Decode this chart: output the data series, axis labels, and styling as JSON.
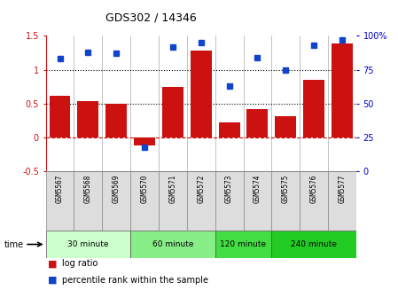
{
  "title": "GDS302 / 14346",
  "samples": [
    "GSM5567",
    "GSM5568",
    "GSM5569",
    "GSM5570",
    "GSM5571",
    "GSM5572",
    "GSM5573",
    "GSM5574",
    "GSM5575",
    "GSM5576",
    "GSM5577"
  ],
  "log_ratio": [
    0.62,
    0.54,
    0.5,
    -0.12,
    0.75,
    1.28,
    0.22,
    0.42,
    0.32,
    0.85,
    1.38
  ],
  "percentile": [
    83,
    88,
    87,
    18,
    92,
    95,
    63,
    84,
    75,
    93,
    97
  ],
  "bar_color": "#cc1111",
  "dot_color": "#1144cc",
  "ylim_left": [
    -0.5,
    1.5
  ],
  "ylim_right": [
    0,
    100
  ],
  "yticks_left": [
    -0.5,
    0.0,
    0.5,
    1.0,
    1.5
  ],
  "ytick_labels_left": [
    "-0.5",
    "0",
    "0.5",
    "1",
    "1.5"
  ],
  "yticks_right": [
    0,
    25,
    50,
    75,
    100
  ],
  "ytick_labels_right": [
    "0",
    "25",
    "50",
    "75",
    "100%"
  ],
  "hlines": [
    0.5,
    1.0
  ],
  "zero_line": 0.0,
  "groups": [
    {
      "label": "30 minute",
      "start": 0,
      "end": 3,
      "color": "#ccffcc"
    },
    {
      "label": "60 minute",
      "start": 3,
      "end": 6,
      "color": "#88ee88"
    },
    {
      "label": "120 minute",
      "start": 6,
      "end": 8,
      "color": "#44dd44"
    },
    {
      "label": "240 minute",
      "start": 8,
      "end": 11,
      "color": "#22cc22"
    }
  ],
  "time_label": "time",
  "legend_bar_label": "log ratio",
  "legend_dot_label": "percentile rank within the sample",
  "bg_color": "#ffffff",
  "sample_bg_color": "#dddddd",
  "grid_line_color": "#aaaaaa"
}
